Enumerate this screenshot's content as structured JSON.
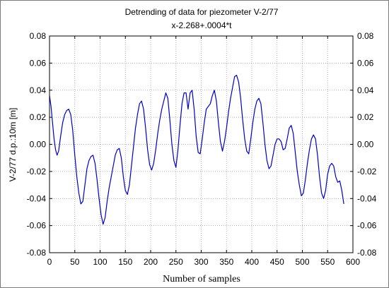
{
  "chart_data": {
    "type": "line",
    "title": "Detrending of data for piezometer V-2/77",
    "subtitle": "x-2.268+.0004*t",
    "xlabel": "Number of samples",
    "ylabel": "V-2/77 d.p.:10m [m]",
    "xlim": [
      0,
      600
    ],
    "ylim": [
      -0.08,
      0.08
    ],
    "x_ticks": [
      0,
      50,
      100,
      150,
      200,
      250,
      300,
      350,
      400,
      450,
      500,
      550,
      600
    ],
    "y_ticks": [
      -0.08,
      -0.06,
      -0.04,
      -0.02,
      0.0,
      0.02,
      0.04,
      0.06,
      0.08
    ],
    "x_tick_labels": [
      "0",
      "50",
      "100",
      "150",
      "200",
      "250",
      "300",
      "350",
      "400",
      "450",
      "500",
      "550",
      "600"
    ],
    "y_tick_labels": [
      "-0.08",
      "-0.06",
      "-0.04",
      "-0.02",
      "0.00",
      "0.02",
      "0.04",
      "0.06",
      "0.08"
    ],
    "grid": true,
    "colors": {
      "series": "#0000cc",
      "grid": "#9a9a9a",
      "axis": "#000000"
    },
    "series": [
      {
        "x": [
          0,
          3,
          6,
          9,
          12,
          15,
          18,
          22,
          26,
          30,
          34,
          38,
          42,
          46,
          50,
          54,
          58,
          62,
          66,
          70,
          74,
          78,
          82,
          86,
          90,
          94,
          98,
          102,
          106,
          110,
          114,
          118,
          122,
          126,
          130,
          134,
          138,
          142,
          146,
          150,
          154,
          158,
          162,
          166,
          170,
          174,
          178,
          182,
          186,
          190,
          194,
          198,
          202,
          206,
          210,
          214,
          218,
          222,
          226,
          230,
          234,
          238,
          242,
          246,
          250,
          254,
          258,
          262,
          266,
          270,
          274,
          278,
          282,
          286,
          290,
          294,
          298,
          302,
          306,
          310,
          314,
          318,
          322,
          326,
          330,
          334,
          338,
          342,
          346,
          350,
          354,
          358,
          362,
          366,
          370,
          374,
          378,
          382,
          386,
          390,
          394,
          398,
          402,
          406,
          410,
          414,
          418,
          422,
          426,
          430,
          434,
          438,
          442,
          446,
          450,
          454,
          458,
          462,
          466,
          470,
          474,
          478,
          482,
          486,
          490,
          494,
          498,
          502,
          506,
          510,
          514,
          518,
          522,
          526,
          530,
          534,
          538,
          542,
          546,
          550,
          554,
          558,
          562,
          566,
          570,
          574,
          578,
          582
        ],
        "y": [
          0.036,
          0.028,
          0.016,
          0.004,
          -0.004,
          -0.008,
          -0.005,
          0.006,
          0.016,
          0.022,
          0.025,
          0.026,
          0.022,
          0.01,
          -0.008,
          -0.024,
          -0.036,
          -0.044,
          -0.042,
          -0.03,
          -0.018,
          -0.012,
          -0.009,
          -0.008,
          -0.014,
          -0.026,
          -0.04,
          -0.052,
          -0.059,
          -0.054,
          -0.042,
          -0.032,
          -0.024,
          -0.016,
          -0.008,
          -0.004,
          -0.003,
          -0.01,
          -0.024,
          -0.034,
          -0.037,
          -0.03,
          -0.016,
          -0.002,
          0.012,
          0.022,
          0.03,
          0.032,
          0.026,
          0.012,
          -0.004,
          -0.015,
          -0.019,
          -0.014,
          -0.004,
          0.008,
          0.018,
          0.026,
          0.032,
          0.038,
          0.034,
          0.018,
          0.0,
          -0.012,
          -0.017,
          -0.004,
          0.014,
          0.03,
          0.038,
          0.038,
          0.026,
          0.038,
          0.04,
          0.026,
          0.006,
          -0.006,
          -0.007,
          0.004,
          0.016,
          0.026,
          0.028,
          0.03,
          0.036,
          0.04,
          0.032,
          0.016,
          0.002,
          -0.005,
          0.002,
          0.012,
          0.024,
          0.034,
          0.042,
          0.05,
          0.051,
          0.046,
          0.034,
          0.018,
          0.004,
          -0.005,
          -0.007,
          0.004,
          0.016,
          0.026,
          0.032,
          0.034,
          0.03,
          0.016,
          0.0,
          -0.012,
          -0.018,
          -0.016,
          -0.008,
          0.0,
          0.004,
          0.004,
          0.002,
          -0.004,
          -0.003,
          0.004,
          0.012,
          0.014,
          0.008,
          -0.006,
          -0.02,
          -0.03,
          -0.038,
          -0.036,
          -0.026,
          -0.014,
          -0.004,
          0.004,
          0.007,
          0.004,
          -0.008,
          -0.024,
          -0.036,
          -0.04,
          -0.034,
          -0.022,
          -0.016,
          -0.014,
          -0.016,
          -0.024,
          -0.028,
          -0.027,
          -0.034,
          -0.044
        ]
      }
    ]
  }
}
